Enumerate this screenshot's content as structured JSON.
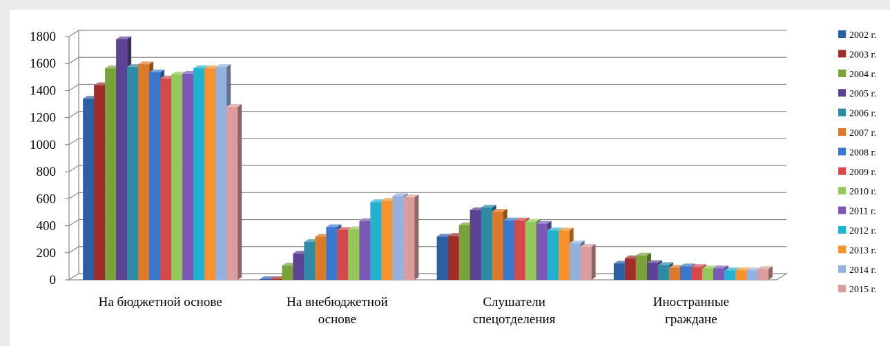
{
  "chart_data": {
    "type": "bar",
    "style": "3d-clustered-column",
    "categories": [
      [
        "На бюджетной основе"
      ],
      [
        "На внебюджетной",
        "основе"
      ],
      [
        "Слушатели",
        "спецотделения"
      ],
      [
        "Иностранные",
        "граждане"
      ]
    ],
    "ylim": [
      0,
      1800
    ],
    "yticks": [
      0,
      200,
      400,
      600,
      800,
      1000,
      1200,
      1400,
      1600,
      1800
    ],
    "grid": true,
    "legend_position": "right",
    "series": [
      {
        "name": "2002 г.",
        "color": "#2b5fa6",
        "values": [
          1340,
          5,
          320,
          120
        ]
      },
      {
        "name": "2003 г.",
        "color": "#a12d2a",
        "values": [
          1440,
          5,
          325,
          160
        ]
      },
      {
        "name": "2004 г.",
        "color": "#79a33a",
        "values": [
          1565,
          105,
          405,
          180
        ]
      },
      {
        "name": "2005 г.",
        "color": "#5c4393",
        "values": [
          1780,
          195,
          515,
          125
        ]
      },
      {
        "name": "2006 г.",
        "color": "#2d8ca5",
        "values": [
          1575,
          280,
          535,
          110
        ]
      },
      {
        "name": "2007 г.",
        "color": "#db7a2a",
        "values": [
          1595,
          320,
          505,
          90
        ]
      },
      {
        "name": "2008 г.",
        "color": "#3a78cf",
        "values": [
          1535,
          390,
          440,
          100
        ]
      },
      {
        "name": "2009 г.",
        "color": "#d44a4a",
        "values": [
          1490,
          370,
          440,
          95
        ]
      },
      {
        "name": "2010 г.",
        "color": "#93c85a",
        "values": [
          1520,
          375,
          430,
          85
        ]
      },
      {
        "name": "2011 г.",
        "color": "#7a59b7",
        "values": [
          1525,
          435,
          415,
          85
        ]
      },
      {
        "name": "2012 г.",
        "color": "#1fb3d1",
        "values": [
          1565,
          575,
          365,
          70
        ]
      },
      {
        "name": "2013 г.",
        "color": "#f7922e",
        "values": [
          1565,
          585,
          365,
          70
        ]
      },
      {
        "name": "2014 г.",
        "color": "#94b1dd",
        "values": [
          1575,
          620,
          270,
          70
        ]
      },
      {
        "name": "2015 г.",
        "color": "#db9c9b",
        "values": [
          1280,
          610,
          245,
          80
        ]
      }
    ]
  }
}
